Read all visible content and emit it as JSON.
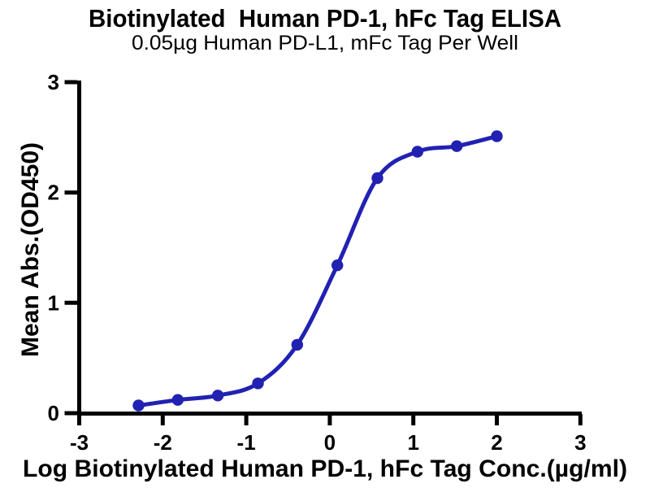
{
  "header": {
    "title": "Biotinylated  Human PD-1, hFc Tag ELISA",
    "subtitle": "0.05µg Human PD-L1, mFc Tag Per Well"
  },
  "chart_data": {
    "type": "scatter",
    "curve_fit": "sigmoidal-4PL-dose-response",
    "title": "Biotinylated  Human PD-1, hFc Tag ELISA",
    "subtitle": "0.05µg Human PD-L1, mFc Tag Per Well",
    "xlabel": "Log Biotinylated Human PD-1, hFc Tag Conc.(µg/ml)",
    "ylabel": "Mean Abs.(OD450)",
    "xlim": [
      -3,
      3
    ],
    "ylim": [
      0,
      3
    ],
    "x_ticks": [
      -3,
      -2,
      -1,
      0,
      1,
      2,
      3
    ],
    "y_ticks": [
      0,
      1,
      2,
      3
    ],
    "grid": false,
    "legend": "none",
    "series": [
      {
        "name": "Biotinylated Human PD-1, hFc Tag",
        "x": [
          -2.29,
          -1.82,
          -1.34,
          -0.86,
          -0.39,
          0.09,
          0.57,
          1.05,
          1.52,
          2.0
        ],
        "y": [
          0.07,
          0.12,
          0.16,
          0.27,
          0.62,
          1.34,
          2.13,
          2.37,
          2.42,
          2.51
        ]
      }
    ],
    "colors": {
      "series": "#2121b2",
      "axis": "#000000",
      "text": "#000000",
      "background": "#ffffff"
    }
  }
}
